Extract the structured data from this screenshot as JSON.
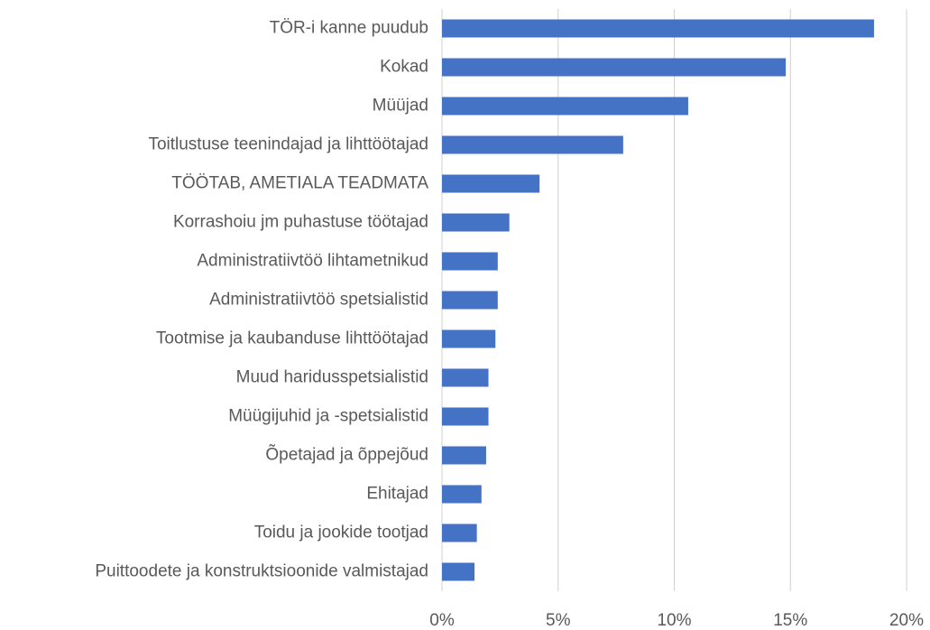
{
  "chart_data": {
    "type": "bar",
    "orientation": "horizontal",
    "categories": [
      "TÖR-i kanne puudub",
      "Kokad",
      "Müüjad",
      "Toitlustuse teenindajad ja lihttöötajad",
      "TÖÖTAB, AMETIALA TEADMATA",
      "Korrashoiu jm puhastuse töötajad",
      "Administratiivtöö lihtametnikud",
      "Administratiivtöö spetsialistid",
      "Tootmise ja kaubanduse lihttöötajad",
      "Muud haridusspetsialistid",
      "Müügijuhid ja -spetsialistid",
      "Õpetajad ja õppejõud",
      "Ehitajad",
      "Toidu ja jookide tootjad",
      "Puittoodete ja konstruktsioonide valmistajad"
    ],
    "values": [
      18.6,
      14.8,
      10.6,
      7.8,
      4.2,
      2.9,
      2.4,
      2.4,
      2.3,
      2.0,
      2.0,
      1.9,
      1.7,
      1.5,
      1.4
    ],
    "color": "#4472c4",
    "xlim": [
      0,
      20
    ],
    "xticks": [
      {
        "value": 0,
        "label": "0%"
      },
      {
        "value": 5,
        "label": "5%"
      },
      {
        "value": 10,
        "label": "10%"
      },
      {
        "value": 15,
        "label": "15%"
      },
      {
        "value": 20,
        "label": "20%"
      }
    ],
    "grid": true
  }
}
